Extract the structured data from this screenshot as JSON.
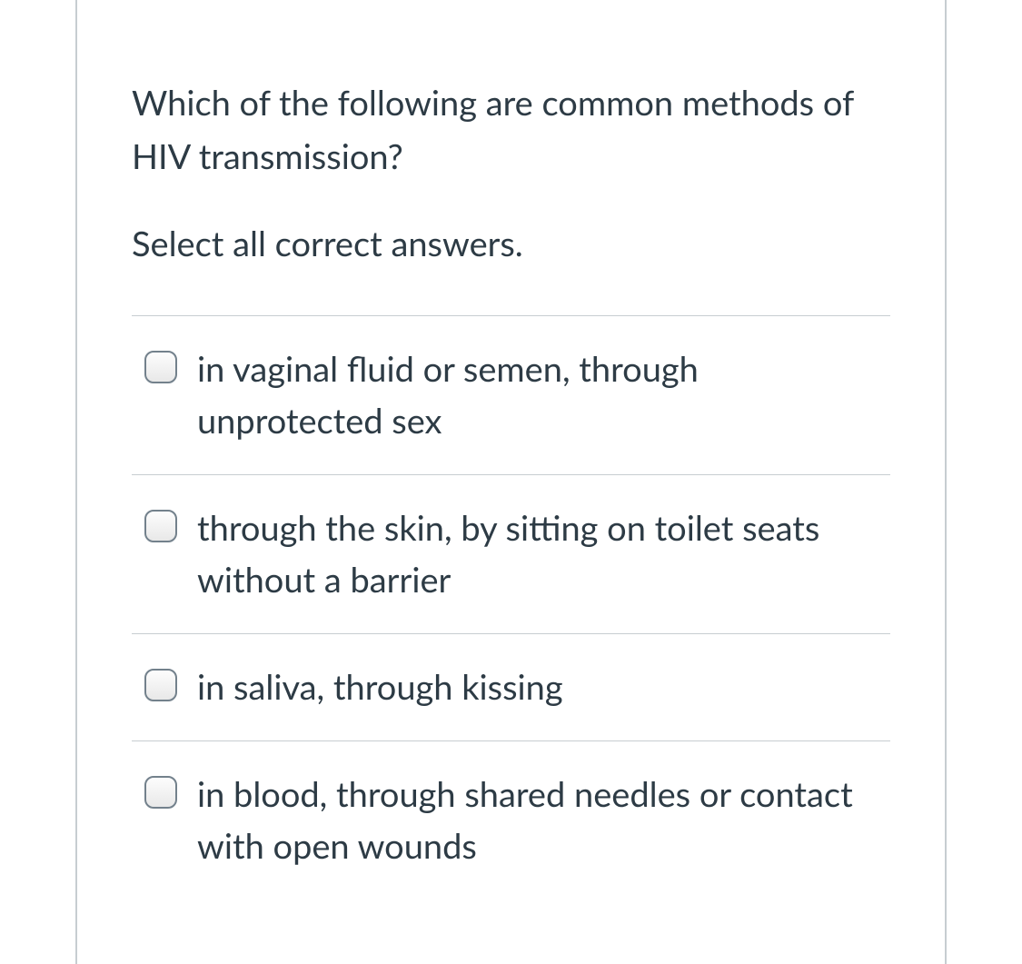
{
  "question": {
    "prompt": "Which of the following are common methods of HIV transmission?",
    "instruction": "Select all correct answers.",
    "options": [
      {
        "label": "in vaginal fluid or semen, through unprotected sex",
        "checked": false
      },
      {
        "label": "through the skin, by sitting on toilet seats without a barrier",
        "checked": false
      },
      {
        "label": "in saliva, through kissing",
        "checked": false
      },
      {
        "label": "in blood, through shared needles or contact with open wounds",
        "checked": false
      }
    ]
  },
  "colors": {
    "text": "#2d3b45",
    "border": "#c7cdd1",
    "checkbox_border": "#73818c",
    "background": "#ffffff"
  },
  "typography": {
    "font_size": 38,
    "line_height": 1.5
  }
}
